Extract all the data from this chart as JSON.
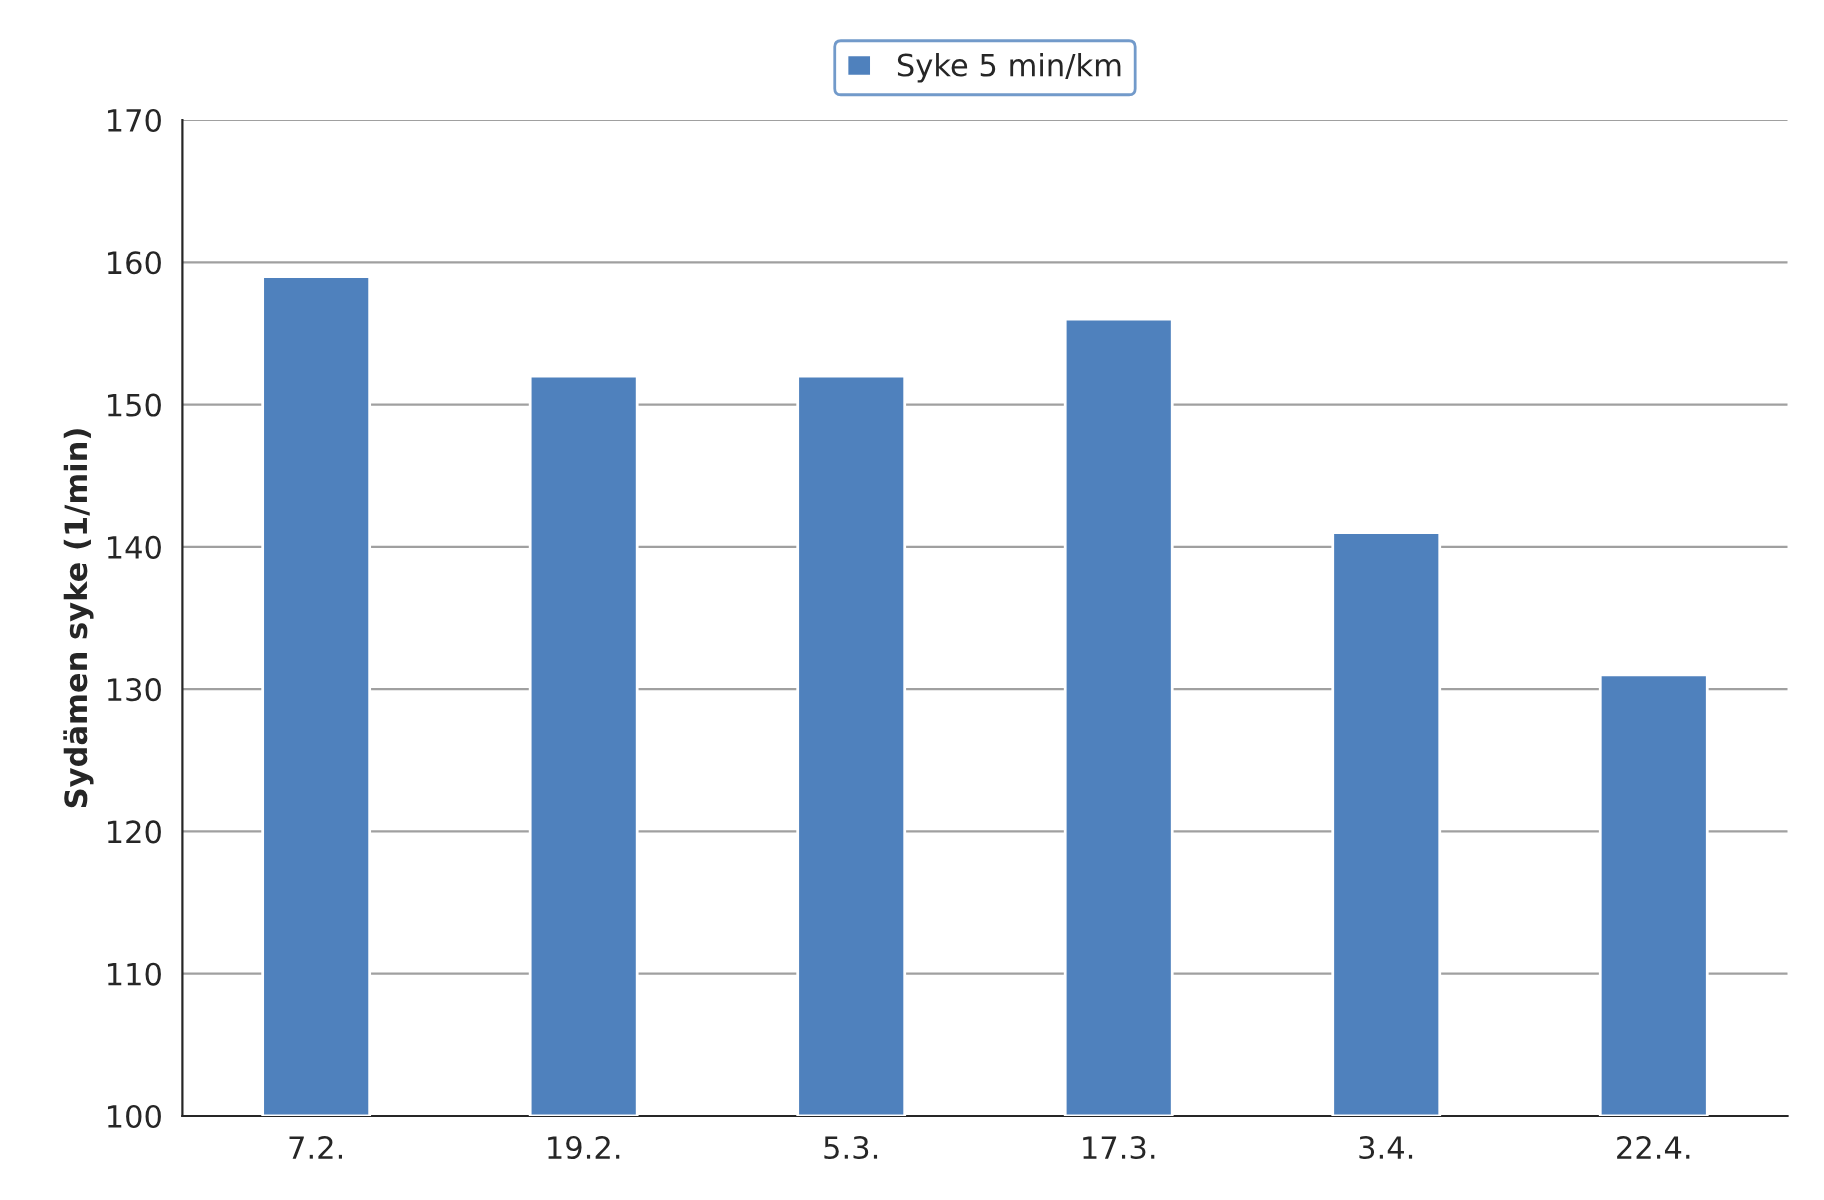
{
  "chart_data": {
    "type": "bar",
    "ylabel": "Sydämen syke (1/min)",
    "categories": [
      "7.2.",
      "19.2.",
      "5.3.",
      "17.3.",
      "3.4.",
      "22.4."
    ],
    "series": [
      {
        "name": "Syke 5 min/km",
        "color": "#4f81bd",
        "values": [
          159,
          152,
          152,
          156,
          141,
          131
        ]
      }
    ],
    "ylim": [
      100,
      170
    ],
    "yticks": [
      100,
      110,
      120,
      130,
      140,
      150,
      160,
      170
    ],
    "grid": "y",
    "legend": "top"
  }
}
